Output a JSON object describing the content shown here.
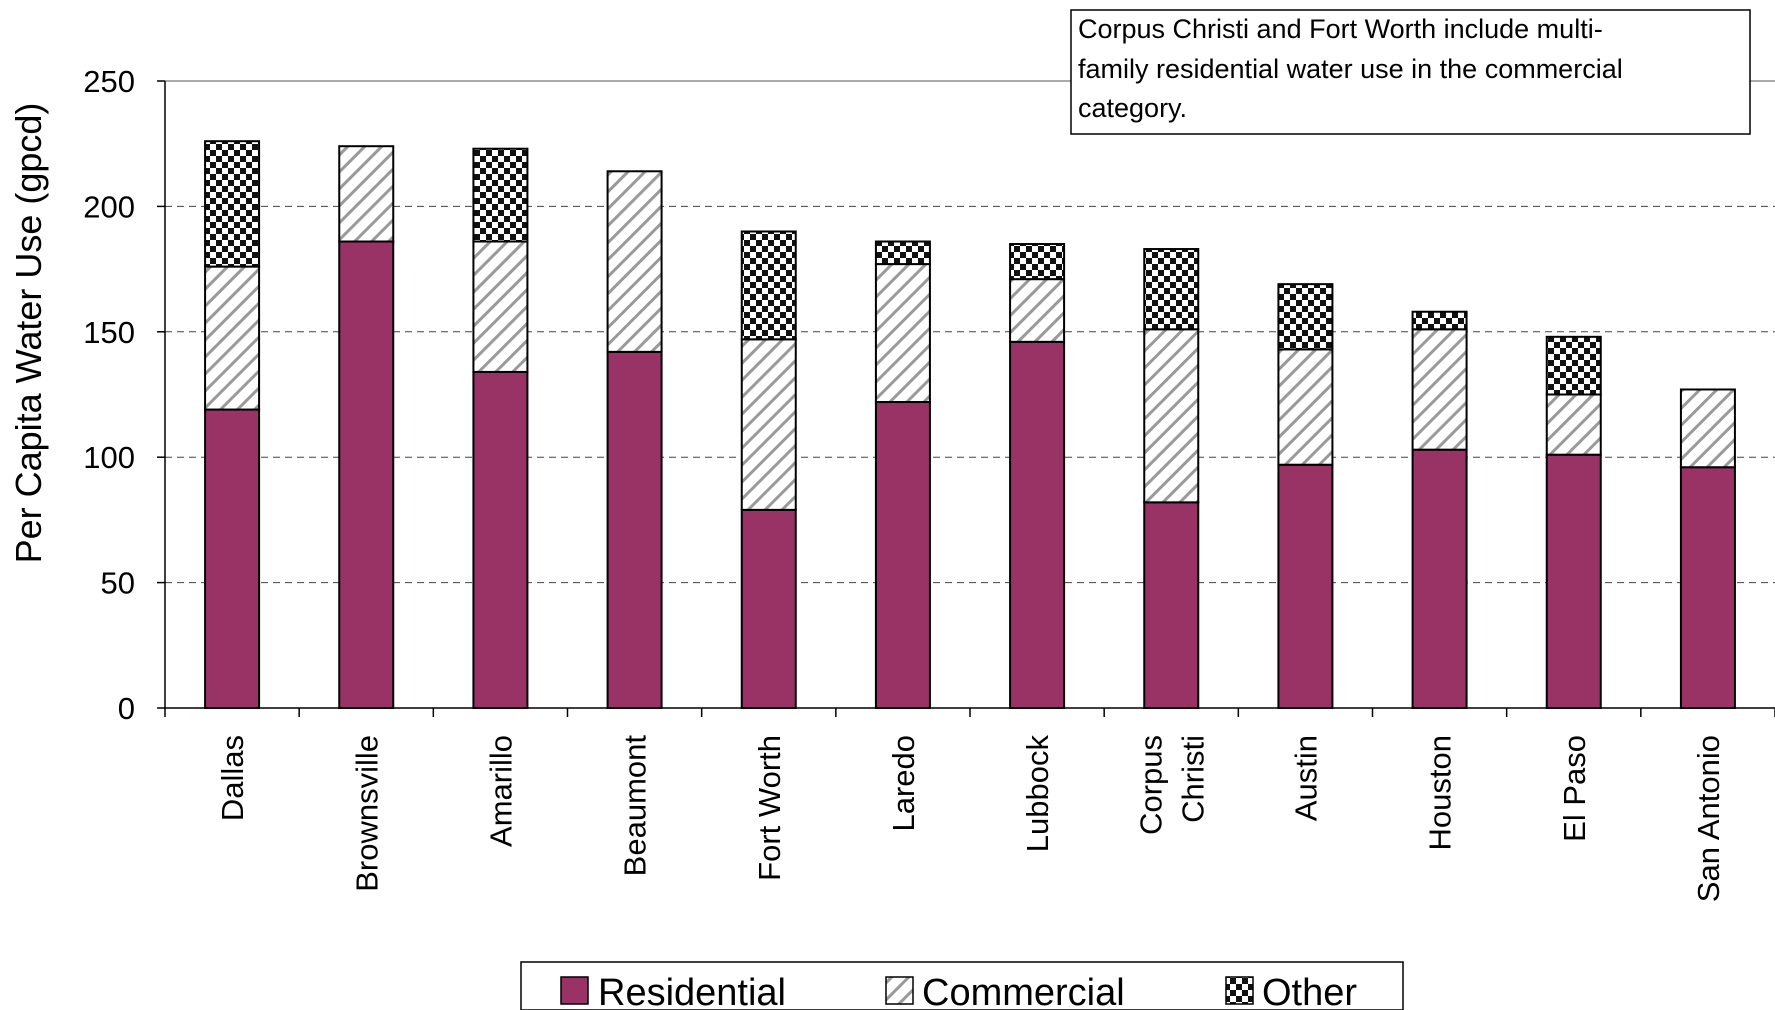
{
  "chart_data": {
    "type": "bar",
    "stacked": true,
    "ylabel": "Per Capita Water Use (gpcd)",
    "xlabel": "",
    "ylim": [
      0,
      250
    ],
    "yticks": [
      0,
      50,
      100,
      150,
      200,
      250
    ],
    "grid": true,
    "categories": [
      "Dallas",
      "Brownsville",
      "Amarillo",
      "Beaumont",
      "Fort Worth",
      "Laredo",
      "Lubbock",
      "Corpus Christi",
      "Austin",
      "Houston",
      "El Paso",
      "San Antonio"
    ],
    "category_lines": [
      [
        "Dallas"
      ],
      [
        "Brownsville"
      ],
      [
        "Amarillo"
      ],
      [
        "Beaumont"
      ],
      [
        "Fort Worth"
      ],
      [
        "Laredo"
      ],
      [
        "Lubbock"
      ],
      [
        "Corpus",
        "Christi"
      ],
      [
        "Austin"
      ],
      [
        "Houston"
      ],
      [
        "El Paso"
      ],
      [
        "San Antonio"
      ]
    ],
    "series": [
      {
        "name": "Residential",
        "values": [
          119,
          186,
          134,
          142,
          79,
          122,
          146,
          82,
          97,
          103,
          101,
          96
        ],
        "color": "#993366",
        "pattern": "solid"
      },
      {
        "name": "Commercial",
        "values": [
          57,
          38,
          52,
          72,
          68,
          55,
          25,
          69,
          46,
          48,
          24,
          31
        ],
        "color": "#ffffff",
        "pattern": "diagonal"
      },
      {
        "name": "Other",
        "values": [
          50,
          0,
          37,
          0,
          43,
          9,
          14,
          32,
          26,
          7,
          23,
          0
        ],
        "color": "#ffffff",
        "pattern": "checker"
      }
    ],
    "annotation": "Corpus Christi and Fort Worth include multi-family residential water use in the commercial category.",
    "annotation_lines": [
      "Corpus Christi and Fort Worth include multi-",
      "family residential water use in the commercial",
      "category."
    ],
    "legend": {
      "position": "bottom",
      "entries": [
        "Residential",
        "Commercial",
        "Other"
      ]
    }
  }
}
